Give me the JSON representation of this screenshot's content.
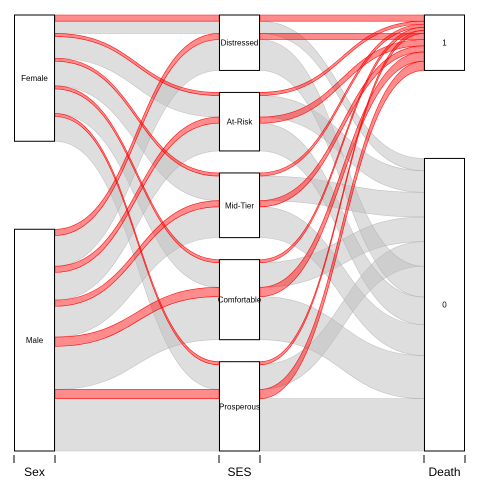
{
  "chart_data": {
    "type": "alluvial",
    "axes": [
      {
        "name": "Sex",
        "categories": [
          "Female",
          "Male"
        ]
      },
      {
        "name": "SES",
        "categories": [
          "Distressed",
          "At-Risk",
          "Mid-Tier",
          "Comfortable",
          "Prosperous"
        ]
      },
      {
        "name": "Death",
        "categories": [
          "1",
          "0"
        ]
      }
    ],
    "flows": [
      {
        "sex": "Female",
        "ses": "Distressed",
        "death": "1",
        "count": 2,
        "highlight": true
      },
      {
        "sex": "Female",
        "ses": "Distressed",
        "death": "0",
        "count": 4,
        "highlight": false
      },
      {
        "sex": "Female",
        "ses": "At-Risk",
        "death": "1",
        "count": 1,
        "highlight": true
      },
      {
        "sex": "Female",
        "ses": "At-Risk",
        "death": "0",
        "count": 7,
        "highlight": false
      },
      {
        "sex": "Female",
        "ses": "Mid-Tier",
        "death": "1",
        "count": 1,
        "highlight": true
      },
      {
        "sex": "Female",
        "ses": "Mid-Tier",
        "death": "0",
        "count": 8,
        "highlight": false
      },
      {
        "sex": "Female",
        "ses": "Comfortable",
        "death": "1",
        "count": 1,
        "highlight": true
      },
      {
        "sex": "Female",
        "ses": "Comfortable",
        "death": "0",
        "count": 8,
        "highlight": false
      },
      {
        "sex": "Female",
        "ses": "Prosperous",
        "death": "1",
        "count": 1,
        "highlight": true
      },
      {
        "sex": "Female",
        "ses": "Prosperous",
        "death": "0",
        "count": 8,
        "highlight": false
      },
      {
        "sex": "Male",
        "ses": "Distressed",
        "death": "1",
        "count": 2,
        "highlight": true
      },
      {
        "sex": "Male",
        "ses": "Distressed",
        "death": "0",
        "count": 10,
        "highlight": false
      },
      {
        "sex": "Male",
        "ses": "At-Risk",
        "death": "1",
        "count": 2,
        "highlight": true
      },
      {
        "sex": "Male",
        "ses": "At-Risk",
        "death": "0",
        "count": 9,
        "highlight": false
      },
      {
        "sex": "Male",
        "ses": "Mid-Tier",
        "death": "1",
        "count": 2,
        "highlight": true
      },
      {
        "sex": "Male",
        "ses": "Mid-Tier",
        "death": "0",
        "count": 10,
        "highlight": false
      },
      {
        "sex": "Male",
        "ses": "Comfortable",
        "death": "1",
        "count": 3,
        "highlight": true
      },
      {
        "sex": "Male",
        "ses": "Comfortable",
        "death": "0",
        "count": 14,
        "highlight": false
      },
      {
        "sex": "Male",
        "ses": "Prosperous",
        "death": "1",
        "count": 3,
        "highlight": true
      },
      {
        "sex": "Male",
        "ses": "Prosperous",
        "death": "0",
        "count": 17,
        "highlight": false
      }
    ],
    "colors": {
      "highlight_fill": "#ff0000",
      "highlight_opacity": 0.45,
      "highlight_stroke": "#ff0000",
      "other_fill": "#bebebe",
      "other_opacity": 0.5,
      "other_stroke": "#a8a8a8",
      "box_fill": "#ffffff",
      "box_stroke": "#000000"
    }
  }
}
